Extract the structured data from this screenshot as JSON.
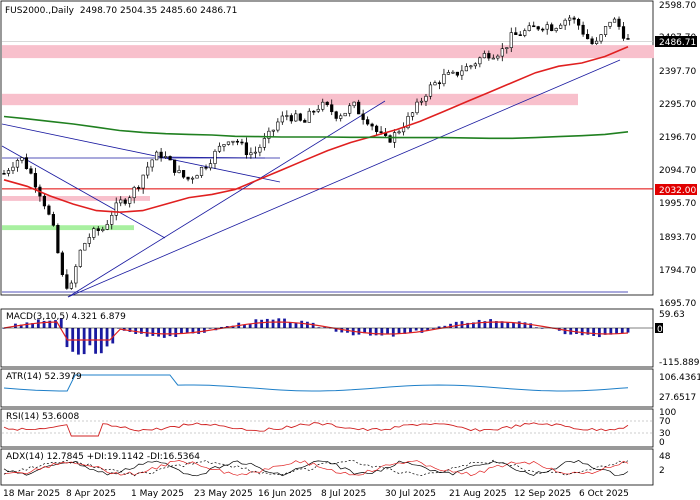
{
  "header": {
    "symbol": "FUS2000.",
    "timeframe": "Daily",
    "ohlc": "2498.70 2504.35 2485.60 2486.71"
  },
  "chart_data": {
    "type": "candlestick",
    "price_scale": {
      "ticks": [
        "2598.70",
        "2497.70",
        "2397.70",
        "2295.70",
        "2196.70",
        "2094.70",
        "1995.70",
        "1893.70",
        "1794.70",
        "1695.70"
      ],
      "ylim": [
        1695.7,
        2598.7
      ],
      "last_price": "2486.71",
      "marked_level": "2032.00"
    },
    "x_axis_labels": [
      "18 Mar 2025",
      "8 Apr 2025",
      "1 May 2025",
      "23 May 2025",
      "16 Jun 2025",
      "8 Jul 2025",
      "30 Jul 2025",
      "21 Aug 2025",
      "12 Sep 2025",
      "6 Oct 2025"
    ],
    "price_path": [
      2080,
      2110,
      2130,
      2090,
      2040,
      1980,
      1900,
      1760,
      1720,
      1830,
      1880,
      1900,
      1910,
      1960,
      1990,
      2010,
      2040,
      2090,
      2130,
      2140,
      2110,
      2080,
      2060,
      2080,
      2100,
      2130,
      2160,
      2190,
      2180,
      2150,
      2140,
      2170,
      2200,
      2240,
      2260,
      2250,
      2230,
      2270,
      2290,
      2280,
      2260,
      2270,
      2290,
      2260,
      2240,
      2200,
      2180,
      2200,
      2230,
      2260,
      2300,
      2340,
      2360,
      2380,
      2380,
      2400,
      2410,
      2430,
      2450,
      2450,
      2460,
      2500,
      2510,
      2520,
      2530,
      2540,
      2530,
      2550,
      2560,
      2540,
      2500,
      2470,
      2510,
      2560,
      2530,
      2487
    ],
    "moving_averages": [
      {
        "color": "#e02020",
        "values": [
          2060,
          2040,
          2010,
          1985,
          1965,
          1960,
          1965,
          1985,
          2005,
          2015,
          2030,
          2060,
          2090,
          2120,
          2150,
          2175,
          2195,
          2215,
          2240,
          2270,
          2300,
          2330,
          2360,
          2390,
          2410,
          2420,
          2440,
          2470
        ]
      },
      {
        "color": "#208020",
        "values": [
          2255,
          2248,
          2240,
          2232,
          2222,
          2212,
          2206,
          2202,
          2200,
          2198,
          2194,
          2193,
          2192,
          2192,
          2192,
          2191,
          2191,
          2190,
          2190,
          2190,
          2189,
          2188,
          2188,
          2190,
          2193,
          2196,
          2200,
          2208
        ]
      }
    ],
    "zones": [
      {
        "color": "#f8c0cc",
        "from": 2435,
        "to": 2475
      },
      {
        "color": "#f8c0cc",
        "from": 2290,
        "to": 2325
      },
      {
        "color": "#f8c0cc",
        "from": 1995,
        "to": 2010
      },
      {
        "color": "#a8f0a0",
        "from": 1905,
        "to": 1920
      }
    ],
    "indicators": [
      {
        "label": "MACD(3,10,5) 4.321 6.879",
        "ticks": [
          "59.63",
          "0.00",
          "-115.889"
        ]
      },
      {
        "label": "ATR(14) 52.3979",
        "ticks": [
          "106.4361",
          "27.6517"
        ]
      },
      {
        "label": "RSI(14) 53.6008",
        "ticks": [
          "100",
          "70",
          "30",
          "0"
        ]
      },
      {
        "label": "ADX(14) 12.7845 +DI:19.1142 -DI:16.5364",
        "ticks": [
          "48",
          "2"
        ]
      }
    ]
  },
  "colors": {
    "candle": "#000000",
    "trendline": "#1a1aa0",
    "level_line": "#e00000",
    "level_tag": "#e00000",
    "price_tag": "#000000",
    "macd_bar": "#1a1aa0",
    "signal": "#e02020"
  }
}
